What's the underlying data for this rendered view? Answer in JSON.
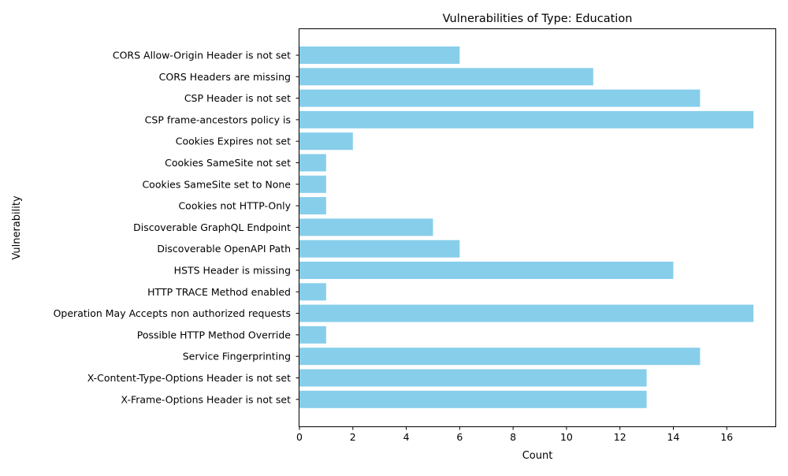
{
  "chart_data": {
    "type": "bar",
    "orientation": "horizontal",
    "title": "Vulnerabilities of Type: Education",
    "xlabel": "Count",
    "ylabel": "Vulnerability",
    "bar_color": "#87CEEB",
    "xlim": [
      0,
      17.85
    ],
    "xticks": [
      0,
      2,
      4,
      6,
      8,
      10,
      12,
      14,
      16
    ],
    "grid": false,
    "legend": "none",
    "categories": [
      "CORS Allow-Origin Header is not set",
      "CORS Headers are missing",
      "CSP Header is not set",
      "CSP frame-ancestors policy is",
      "Cookies Expires not set",
      "Cookies SameSite not set",
      "Cookies SameSite set to None",
      "Cookies not HTTP-Only",
      "Discoverable GraphQL Endpoint",
      "Discoverable OpenAPI Path",
      "HSTS Header is missing",
      "HTTP TRACE Method enabled",
      "Operation May Accepts non authorized requests",
      "Possible HTTP Method Override",
      "Service Fingerprinting",
      "X-Content-Type-Options Header is not set",
      "X-Frame-Options Header is not set"
    ],
    "values": [
      6,
      11,
      15,
      17,
      2,
      1,
      1,
      1,
      5,
      6,
      14,
      1,
      17,
      1,
      15,
      13,
      13
    ]
  }
}
